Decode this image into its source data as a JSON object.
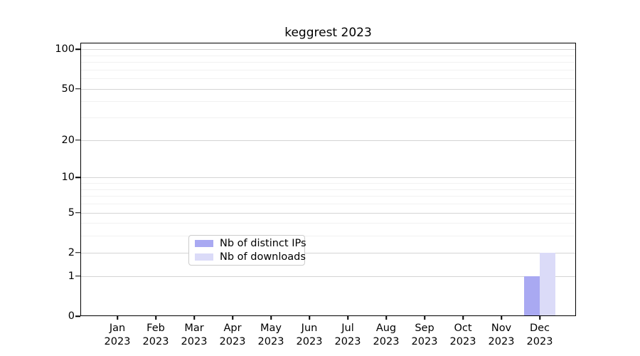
{
  "chart_data": {
    "type": "bar",
    "title": "keggrest 2023",
    "x_tick_labels": [
      {
        "month": "Jan",
        "year": "2023"
      },
      {
        "month": "Feb",
        "year": "2023"
      },
      {
        "month": "Mar",
        "year": "2023"
      },
      {
        "month": "Apr",
        "year": "2023"
      },
      {
        "month": "May",
        "year": "2023"
      },
      {
        "month": "Jun",
        "year": "2023"
      },
      {
        "month": "Jul",
        "year": "2023"
      },
      {
        "month": "Aug",
        "year": "2023"
      },
      {
        "month": "Sep",
        "year": "2023"
      },
      {
        "month": "Oct",
        "year": "2023"
      },
      {
        "month": "Nov",
        "year": "2023"
      },
      {
        "month": "Dec",
        "year": "2023"
      }
    ],
    "series": [
      {
        "name": "Nb of distinct IPs",
        "color": "#a9a9f2",
        "values": [
          0,
          0,
          0,
          0,
          0,
          0,
          0,
          0,
          0,
          0,
          0,
          1
        ]
      },
      {
        "name": "Nb of downloads",
        "color": "#dbdbf8",
        "values": [
          0,
          0,
          0,
          0,
          0,
          0,
          0,
          0,
          0,
          0,
          0,
          2
        ]
      }
    ],
    "y_scale": "log1p",
    "ylim": [
      0,
      112
    ],
    "y_ticks": [
      0,
      1,
      2,
      5,
      10,
      20,
      50,
      100
    ],
    "y_minor_ticks": [
      3,
      4,
      6,
      7,
      8,
      9,
      30,
      40,
      60,
      70,
      80,
      90
    ],
    "grid": "horizontal-only",
    "legend_position": "inside-bottom-center"
  },
  "colors": {
    "major_grid": "#d4d4d4",
    "minor_grid": "#f1f1f1",
    "spine": "#000000",
    "background": "#ffffff"
  }
}
